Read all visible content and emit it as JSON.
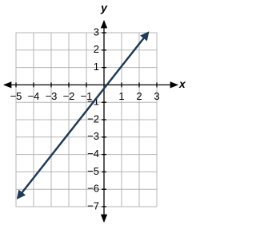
{
  "chart_data": {
    "type": "line",
    "x_label": "x",
    "y_label": "y",
    "x": [
      -4.9,
      2.5
    ],
    "values": [
      -6.5,
      3
    ],
    "color": "#1f3b57",
    "xlim": [
      -5,
      3
    ],
    "ylim": [
      -7,
      3
    ],
    "xticks": [
      {
        "value": -5,
        "label": "−5"
      },
      {
        "value": -4,
        "label": "−4"
      },
      {
        "value": -3,
        "label": "−3"
      },
      {
        "value": -2,
        "label": "−2"
      },
      {
        "value": -1,
        "label": "−1"
      },
      1,
      2,
      3
    ],
    "yticks": [
      {
        "value": -7,
        "label": "−7"
      },
      {
        "value": -6,
        "label": "−6"
      },
      {
        "value": -5,
        "label": "−5"
      },
      {
        "value": -4,
        "label": "−4"
      },
      {
        "value": -3,
        "label": "−3"
      },
      {
        "value": -2,
        "label": "−2"
      },
      {
        "value": -1,
        "label": "−1"
      },
      1,
      2,
      3
    ],
    "grid": true
  }
}
